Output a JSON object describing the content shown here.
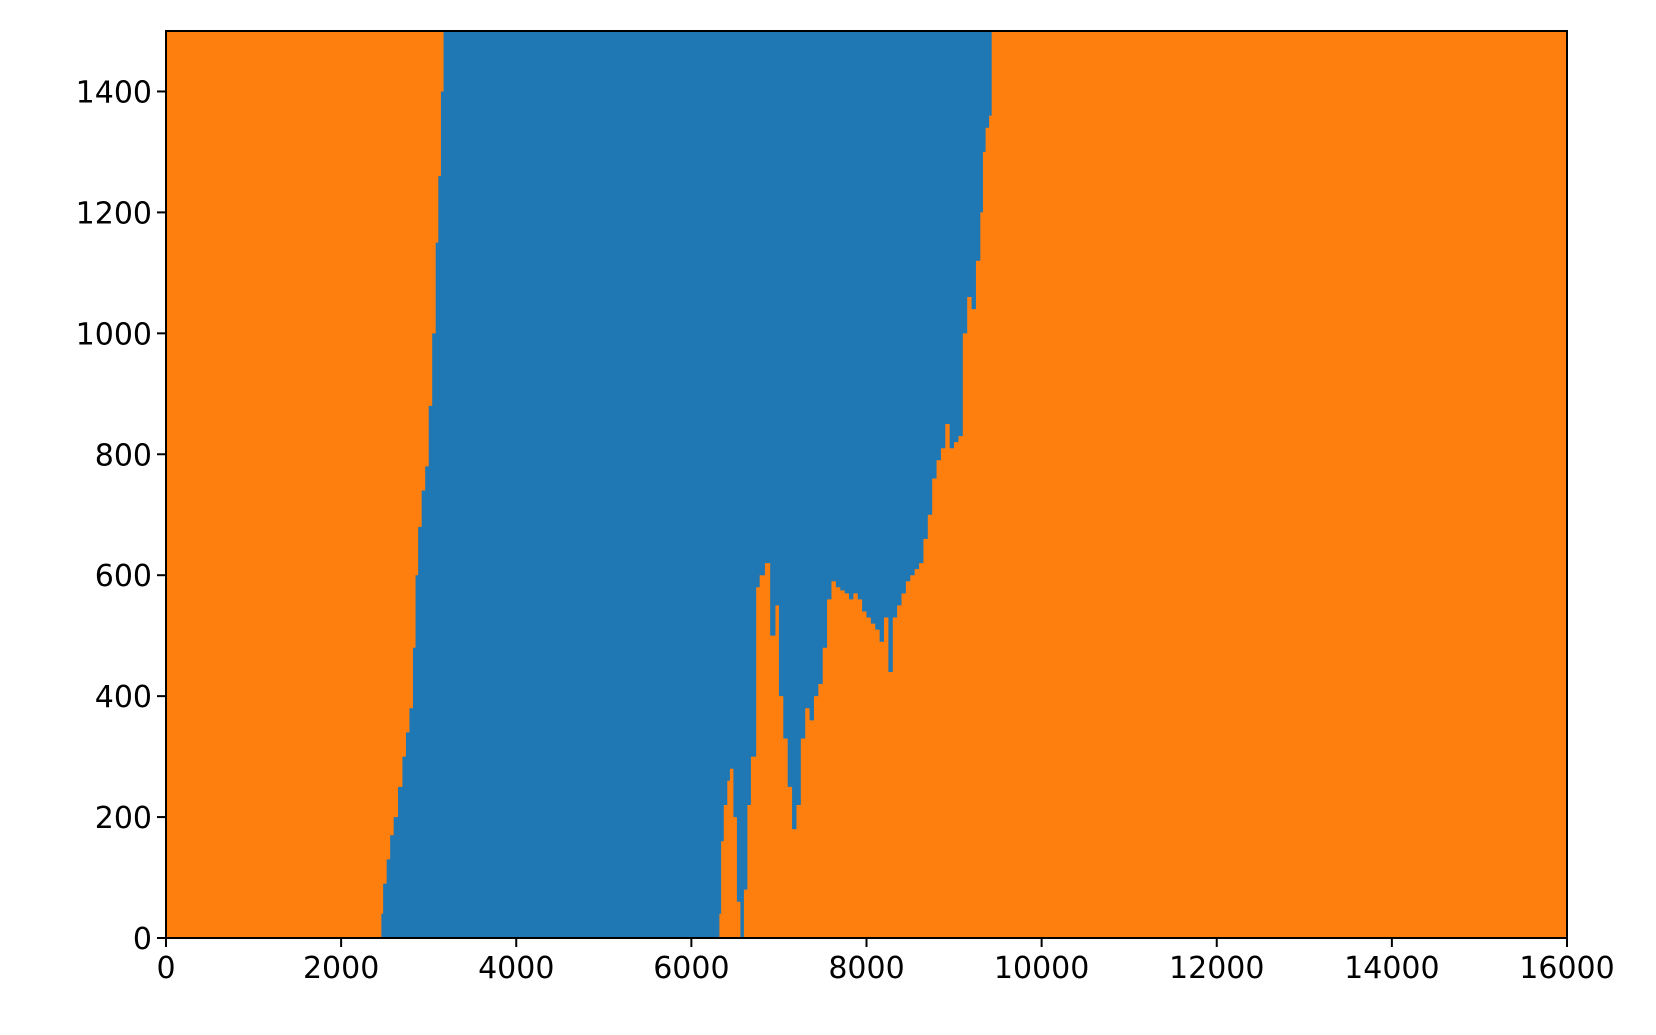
{
  "chart_data": {
    "type": "area",
    "x_range": [
      0,
      16000
    ],
    "y_range": [
      0,
      1500
    ],
    "x_ticks": [
      0,
      2000,
      4000,
      6000,
      8000,
      10000,
      12000,
      14000,
      16000
    ],
    "y_ticks": [
      0,
      200,
      400,
      600,
      800,
      1000,
      1200,
      1400
    ],
    "x_tick_labels": [
      "0",
      "2000",
      "4000",
      "6000",
      "8000",
      "10000",
      "12000",
      "14000",
      "16000"
    ],
    "y_tick_labels": [
      "0",
      "200",
      "400",
      "600",
      "800",
      "1000",
      "1200",
      "1400"
    ],
    "grid": false,
    "legend": "none",
    "series": [
      {
        "color": "#1f77b4",
        "description_of_region": "blue band between left and right boundaries"
      },
      {
        "color": "#ff7f0e"
      }
    ],
    "left_boundary": [
      [
        2460,
        0
      ],
      [
        2480,
        40
      ],
      [
        2520,
        90
      ],
      [
        2560,
        130
      ],
      [
        2600,
        170
      ],
      [
        2650,
        200
      ],
      [
        2700,
        250
      ],
      [
        2740,
        300
      ],
      [
        2780,
        340
      ],
      [
        2820,
        380
      ],
      [
        2850,
        480
      ],
      [
        2880,
        600
      ],
      [
        2920,
        680
      ],
      [
        2960,
        740
      ],
      [
        3000,
        780
      ],
      [
        3040,
        880
      ],
      [
        3080,
        1000
      ],
      [
        3110,
        1150
      ],
      [
        3140,
        1260
      ],
      [
        3170,
        1400
      ],
      [
        3200,
        1500
      ]
    ],
    "right_boundary": [
      [
        6320,
        0
      ],
      [
        6340,
        40
      ],
      [
        6370,
        160
      ],
      [
        6410,
        220
      ],
      [
        6440,
        260
      ],
      [
        6480,
        280
      ],
      [
        6520,
        200
      ],
      [
        6560,
        60
      ],
      [
        6600,
        0
      ],
      [
        6640,
        80
      ],
      [
        6680,
        220
      ],
      [
        6740,
        300
      ],
      [
        6780,
        580
      ],
      [
        6840,
        600
      ],
      [
        6900,
        620
      ],
      [
        6960,
        500
      ],
      [
        7000,
        550
      ],
      [
        7050,
        400
      ],
      [
        7100,
        330
      ],
      [
        7150,
        250
      ],
      [
        7200,
        180
      ],
      [
        7250,
        220
      ],
      [
        7300,
        330
      ],
      [
        7350,
        380
      ],
      [
        7400,
        360
      ],
      [
        7450,
        400
      ],
      [
        7500,
        420
      ],
      [
        7550,
        480
      ],
      [
        7600,
        560
      ],
      [
        7650,
        590
      ],
      [
        7700,
        580
      ],
      [
        7750,
        575
      ],
      [
        7800,
        570
      ],
      [
        7850,
        560
      ],
      [
        7900,
        570
      ],
      [
        7950,
        560
      ],
      [
        8000,
        540
      ],
      [
        8050,
        530
      ],
      [
        8100,
        520
      ],
      [
        8150,
        510
      ],
      [
        8200,
        490
      ],
      [
        8250,
        530
      ],
      [
        8300,
        440
      ],
      [
        8350,
        530
      ],
      [
        8400,
        550
      ],
      [
        8450,
        570
      ],
      [
        8500,
        590
      ],
      [
        8550,
        600
      ],
      [
        8600,
        610
      ],
      [
        8650,
        620
      ],
      [
        8700,
        660
      ],
      [
        8750,
        700
      ],
      [
        8800,
        760
      ],
      [
        8850,
        790
      ],
      [
        8900,
        810
      ],
      [
        8950,
        850
      ],
      [
        9000,
        810
      ],
      [
        9050,
        820
      ],
      [
        9100,
        830
      ],
      [
        9150,
        1000
      ],
      [
        9200,
        1060
      ],
      [
        9250,
        1040
      ],
      [
        9300,
        1120
      ],
      [
        9330,
        1200
      ],
      [
        9360,
        1300
      ],
      [
        9400,
        1340
      ],
      [
        9430,
        1360
      ],
      [
        9460,
        1500
      ]
    ]
  }
}
